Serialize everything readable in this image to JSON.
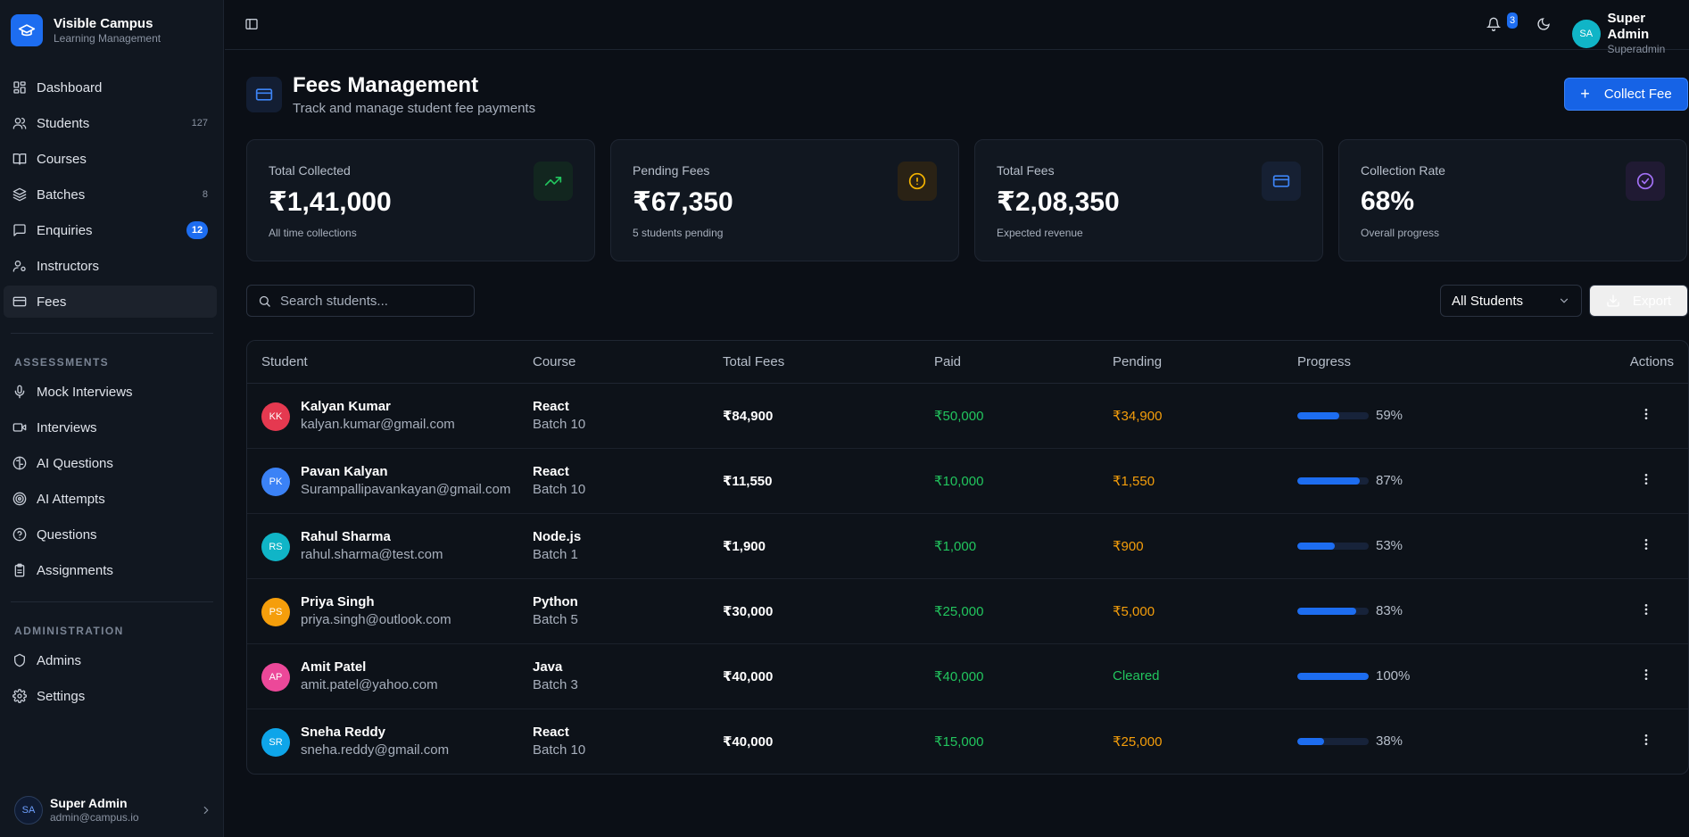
{
  "brand": {
    "name": "Visible Campus",
    "subtitle": "Learning Management"
  },
  "sidebar": {
    "main_items": [
      {
        "label": "Dashboard",
        "icon": "grid-icon"
      },
      {
        "label": "Students",
        "icon": "users-icon",
        "count": "127"
      },
      {
        "label": "Courses",
        "icon": "book-icon"
      },
      {
        "label": "Batches",
        "icon": "layers-icon",
        "count": "8"
      },
      {
        "label": "Enquiries",
        "icon": "message-icon",
        "badge": "12"
      },
      {
        "label": "Instructors",
        "icon": "user-cog-icon"
      },
      {
        "label": "Fees",
        "icon": "credit-card-icon",
        "active": true
      }
    ],
    "assessments_label": "ASSESSMENTS",
    "assessment_items": [
      {
        "label": "Mock Interviews",
        "icon": "mic-icon"
      },
      {
        "label": "Interviews",
        "icon": "video-icon"
      },
      {
        "label": "AI Questions",
        "icon": "brain-icon"
      },
      {
        "label": "AI Attempts",
        "icon": "target-icon"
      },
      {
        "label": "Questions",
        "icon": "help-circle-icon"
      },
      {
        "label": "Assignments",
        "icon": "clipboard-icon"
      }
    ],
    "administration_label": "ADMINISTRATION",
    "admin_items": [
      {
        "label": "Admins",
        "icon": "shield-icon"
      },
      {
        "label": "Settings",
        "icon": "gear-icon"
      }
    ],
    "user": {
      "initials": "SA",
      "name": "Super Admin",
      "email": "admin@campus.io"
    }
  },
  "topbar": {
    "notification_count": "3",
    "user": {
      "initials": "SA",
      "name": "Super Admin",
      "role": "Superadmin"
    }
  },
  "header": {
    "title": "Fees Management",
    "subtitle": "Track and manage student fee payments",
    "collect_button": "Collect Fee"
  },
  "stats": [
    {
      "title": "Total Collected",
      "value": "₹1,41,000",
      "sub": "All time collections",
      "icon": "trending-up-icon",
      "color": "#22c55e",
      "bg": "#12261f"
    },
    {
      "title": "Pending Fees",
      "value": "₹67,350",
      "sub": "5 students pending",
      "icon": "alert-circle-icon",
      "color": "#f5b400",
      "bg": "#2a2215"
    },
    {
      "title": "Total Fees",
      "value": "₹2,08,350",
      "sub": "Expected revenue",
      "icon": "credit-card-icon",
      "color": "#3d84f5",
      "bg": "#162033"
    },
    {
      "title": "Collection Rate",
      "value": "68%",
      "sub": "Overall progress",
      "icon": "check-circle-icon",
      "color": "#a371f7",
      "bg": "#201a33"
    }
  ],
  "toolbar": {
    "search_placeholder": "Search students...",
    "filter_value": "All Students",
    "export_label": "Export"
  },
  "table": {
    "columns": [
      "Student",
      "Course",
      "Total Fees",
      "Paid",
      "Pending",
      "Progress",
      "Actions"
    ],
    "rows": [
      {
        "initials": "KK",
        "avatar_color": "#e53950",
        "name": "Kalyan Kumar",
        "email": "kalyan.kumar@gmail.com",
        "course": "React",
        "batch": "Batch 10",
        "total": "₹84,900",
        "paid": "₹50,000",
        "pending": "₹34,900",
        "progress": 59,
        "progress_label": "59%"
      },
      {
        "initials": "PK",
        "avatar_color": "#3b82f6",
        "name": "Pavan Kalyan",
        "email": "Surampallipavankayan@gmail.com",
        "course": "React",
        "batch": "Batch 10",
        "total": "₹11,550",
        "paid": "₹10,000",
        "pending": "₹1,550",
        "progress": 87,
        "progress_label": "87%"
      },
      {
        "initials": "RS",
        "avatar_color": "#10b5c7",
        "name": "Rahul Sharma",
        "email": "rahul.sharma@test.com",
        "course": "Node.js",
        "batch": "Batch 1",
        "total": "₹1,900",
        "paid": "₹1,000",
        "pending": "₹900",
        "progress": 53,
        "progress_label": "53%"
      },
      {
        "initials": "PS",
        "avatar_color": "#f59e0b",
        "name": "Priya Singh",
        "email": "priya.singh@outlook.com",
        "course": "Python",
        "batch": "Batch 5",
        "total": "₹30,000",
        "paid": "₹25,000",
        "pending": "₹5,000",
        "progress": 83,
        "progress_label": "83%"
      },
      {
        "initials": "AP",
        "avatar_color": "#ec4899",
        "name": "Amit Patel",
        "email": "amit.patel@yahoo.com",
        "course": "Java",
        "batch": "Batch 3",
        "total": "₹40,000",
        "paid": "₹40,000",
        "pending": "Cleared",
        "cleared": true,
        "progress": 100,
        "progress_label": "100%"
      },
      {
        "initials": "SR",
        "avatar_color": "#0ea5e9",
        "name": "Sneha Reddy",
        "email": "sneha.reddy@gmail.com",
        "course": "React",
        "batch": "Batch 10",
        "total": "₹40,000",
        "paid": "₹15,000",
        "pending": "₹25,000",
        "progress": 38,
        "progress_label": "38%"
      }
    ]
  }
}
